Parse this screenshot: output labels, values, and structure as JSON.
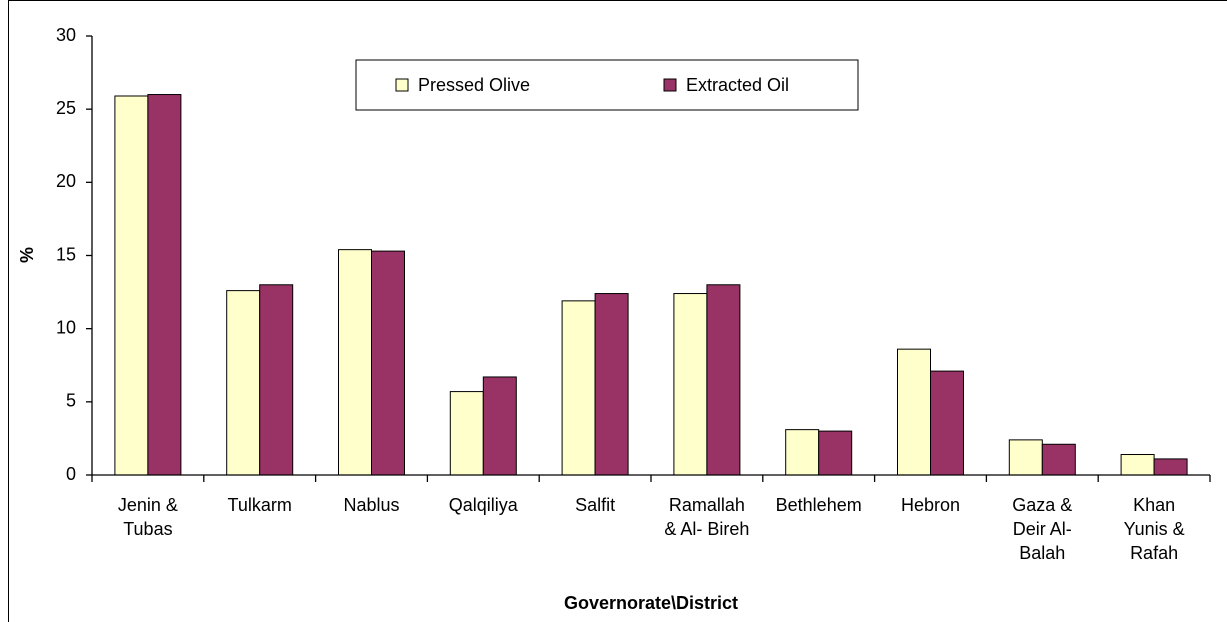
{
  "chart_data": {
    "type": "bar",
    "categories": [
      "Jenin &\nTubas",
      "Tulkarm",
      "Nablus",
      "Qalqiliya",
      "Salfit",
      "Ramallah\n& Al- Bireh",
      "Bethlehem",
      "Hebron",
      "Gaza &\nDeir Al-\nBalah",
      "Khan\nYunis &\nRafah"
    ],
    "series": [
      {
        "name": "Pressed Olive",
        "color": "#ffffcc",
        "values": [
          25.9,
          12.6,
          15.4,
          5.7,
          11.9,
          12.4,
          3.1,
          8.6,
          2.4,
          1.4
        ]
      },
      {
        "name": "Extracted Oil",
        "color": "#993366",
        "values": [
          26.0,
          13.0,
          15.3,
          6.7,
          12.4,
          13.0,
          3.0,
          7.1,
          2.1,
          1.1
        ]
      }
    ],
    "ylabel": "%",
    "xlabel": "Governorate\\District",
    "ylim": [
      0,
      30
    ],
    "yticks": [
      0,
      5,
      10,
      15,
      20,
      25,
      30
    ],
    "grid": false,
    "legend": "top"
  }
}
